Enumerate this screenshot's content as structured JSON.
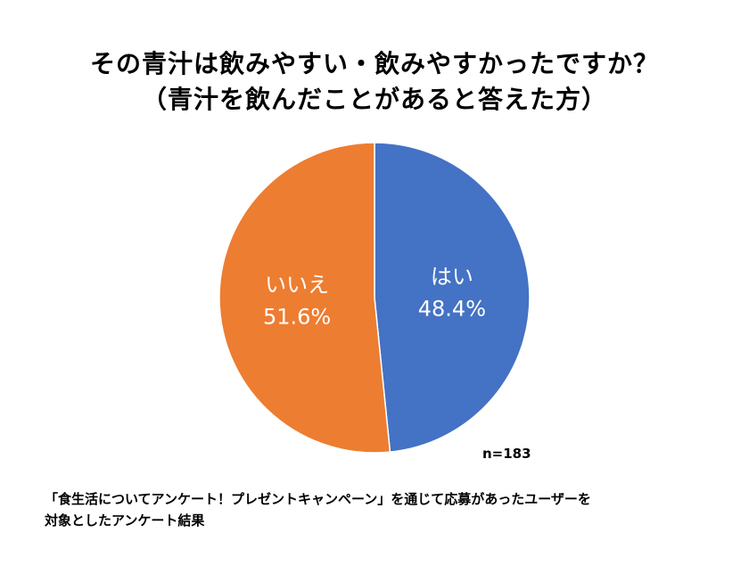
{
  "title_line1": "その青汁は飲みやすい・飲みやすかったですか？",
  "title_line2": "（青汁を飲んだことがあると答えた方）",
  "note": "n=183",
  "footnote_line1": "「食生活についてアンケート！プレゼントキャンペーン」を通じて応募があったユーザーを",
  "footnote_line2": "対象としたアンケート結果",
  "chart_data": {
    "type": "pie",
    "title": "その青汁は飲みやすい・飲みやすかったですか？（青汁を飲んだことがあると答えた方）",
    "n": 183,
    "slices": [
      {
        "label": "はい",
        "value": 48.4,
        "value_label": "48.4%",
        "color": "#4472C4"
      },
      {
        "label": "いいえ",
        "value": 51.6,
        "value_label": "51.6%",
        "color": "#ED7D31"
      }
    ],
    "start": "12 o'clock",
    "direction": "clockwise",
    "legend": "none"
  }
}
